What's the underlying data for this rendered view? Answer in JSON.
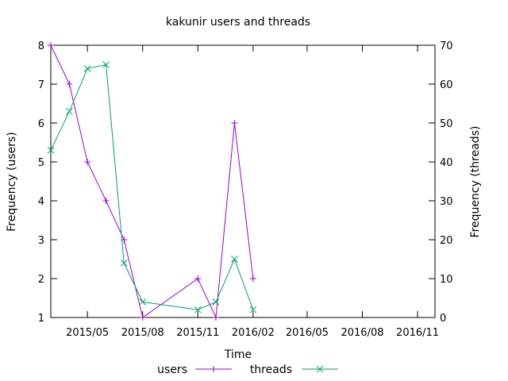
{
  "chart_data": {
    "type": "line",
    "title": "kakunir users and threads",
    "xlabel": "Time",
    "ylabel": "Frequency (users)",
    "y2label": "Frequency (threads)",
    "x_axis": {
      "type": "date",
      "range": [
        "2015-03-01",
        "2016-11-30"
      ],
      "tick_labels": [
        "2015/05",
        "2015/08",
        "2015/11",
        "2016/02",
        "2016/05",
        "2016/08",
        "2016/11"
      ],
      "tick_dates": [
        "2015-05-01",
        "2015-08-01",
        "2015-11-01",
        "2016-02-01",
        "2016-05-01",
        "2016-08-01",
        "2016-11-01"
      ]
    },
    "y_axis": {
      "range": [
        1,
        8
      ],
      "ticks": [
        1,
        2,
        3,
        4,
        5,
        6,
        7,
        8
      ]
    },
    "y2_axis": {
      "range": [
        0,
        70
      ],
      "ticks": [
        0,
        10,
        20,
        30,
        40,
        50,
        60,
        70
      ]
    },
    "grid": false,
    "legend_position": "bottom",
    "series": [
      {
        "name": "users",
        "axis": "left",
        "color": "#9400D3",
        "marker": "plus",
        "points": [
          {
            "x": "2015-03-01",
            "y": 8
          },
          {
            "x": "2015-04-01",
            "y": 7
          },
          {
            "x": "2015-05-01",
            "y": 5
          },
          {
            "x": "2015-06-01",
            "y": 4
          },
          {
            "x": "2015-07-01",
            "y": 3
          },
          {
            "x": "2015-08-01",
            "y": 1
          },
          {
            "x": "2015-11-01",
            "y": 2
          },
          {
            "x": "2015-12-01",
            "y": 1
          },
          {
            "x": "2016-01-01",
            "y": 6
          },
          {
            "x": "2016-02-01",
            "y": 2
          }
        ]
      },
      {
        "name": "threads",
        "axis": "right",
        "color": "#009E73",
        "marker": "cross",
        "points": [
          {
            "x": "2015-03-01",
            "y": 43
          },
          {
            "x": "2015-04-01",
            "y": 53
          },
          {
            "x": "2015-05-01",
            "y": 64
          },
          {
            "x": "2015-06-01",
            "y": 65
          },
          {
            "x": "2015-07-01",
            "y": 14
          },
          {
            "x": "2015-08-01",
            "y": 4
          },
          {
            "x": "2015-11-01",
            "y": 2
          },
          {
            "x": "2015-12-01",
            "y": 4
          },
          {
            "x": "2016-01-01",
            "y": 15
          },
          {
            "x": "2016-02-01",
            "y": 2
          }
        ]
      }
    ]
  }
}
